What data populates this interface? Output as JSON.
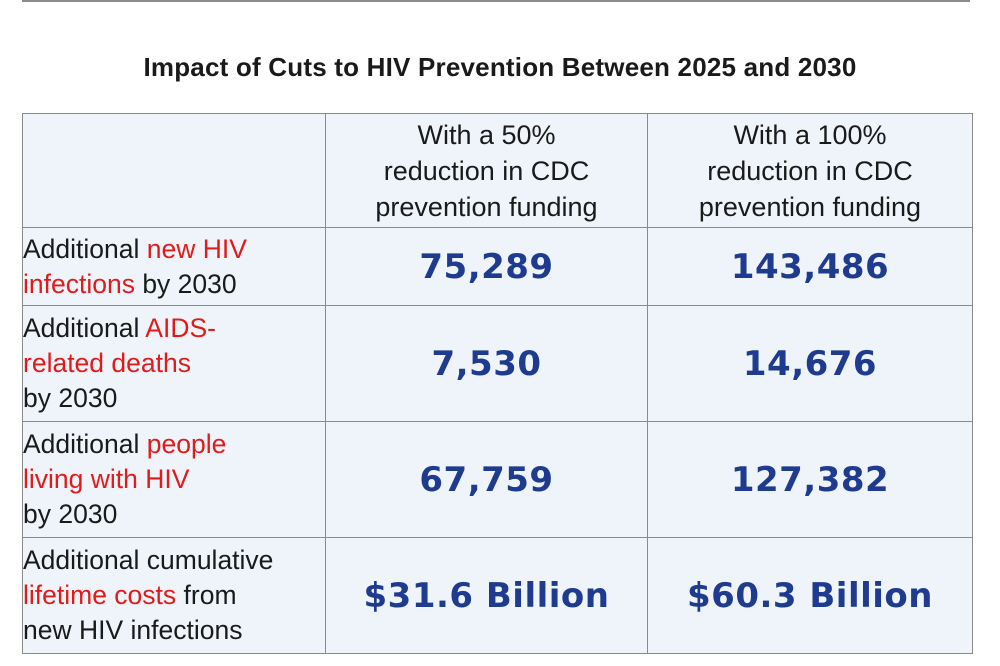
{
  "title": "Impact of Cuts to HIV Prevention Between 2025 and 2030",
  "columns": [
    {
      "lines": [
        "With a 50%",
        "reduction in CDC",
        "prevention funding"
      ]
    },
    {
      "lines": [
        "With a 100%",
        "reduction in CDC",
        "prevention funding"
      ]
    }
  ],
  "rows": [
    {
      "label_lines": [
        [
          {
            "text": "Additional ",
            "highlight": false
          },
          {
            "text": "new HIV",
            "highlight": true
          }
        ],
        [
          {
            "text": "infections",
            "highlight": true
          },
          {
            "text": " by 2030",
            "highlight": false
          }
        ]
      ],
      "values": [
        "75,289",
        "143,486"
      ]
    },
    {
      "label_lines": [
        [
          {
            "text": "Additional ",
            "highlight": false
          },
          {
            "text": "AIDS-",
            "highlight": true
          }
        ],
        [
          {
            "text": "related deaths",
            "highlight": true
          }
        ],
        [
          {
            "text": "by 2030",
            "highlight": false
          }
        ]
      ],
      "values": [
        "7,530",
        "14,676"
      ]
    },
    {
      "label_lines": [
        [
          {
            "text": "Additional ",
            "highlight": false
          },
          {
            "text": "people",
            "highlight": true
          }
        ],
        [
          {
            "text": "living with HIV",
            "highlight": true
          }
        ],
        [
          {
            "text": "by 2030",
            "highlight": false
          }
        ]
      ],
      "values": [
        "67,759",
        "127,382"
      ]
    },
    {
      "label_lines": [
        [
          {
            "text": "Additional cumulative",
            "highlight": false
          }
        ],
        [
          {
            "text": "lifetime costs",
            "highlight": true
          },
          {
            "text": " from",
            "highlight": false
          }
        ],
        [
          {
            "text": "new HIV infections",
            "highlight": false
          }
        ]
      ],
      "values": [
        "$31.6 Billion",
        "$60.3 Billion"
      ]
    }
  ],
  "colors": {
    "highlight": "#e01b1b",
    "value": "#1f3b8f",
    "table_bg": "#eef4f9",
    "border": "#8a8a8a"
  }
}
